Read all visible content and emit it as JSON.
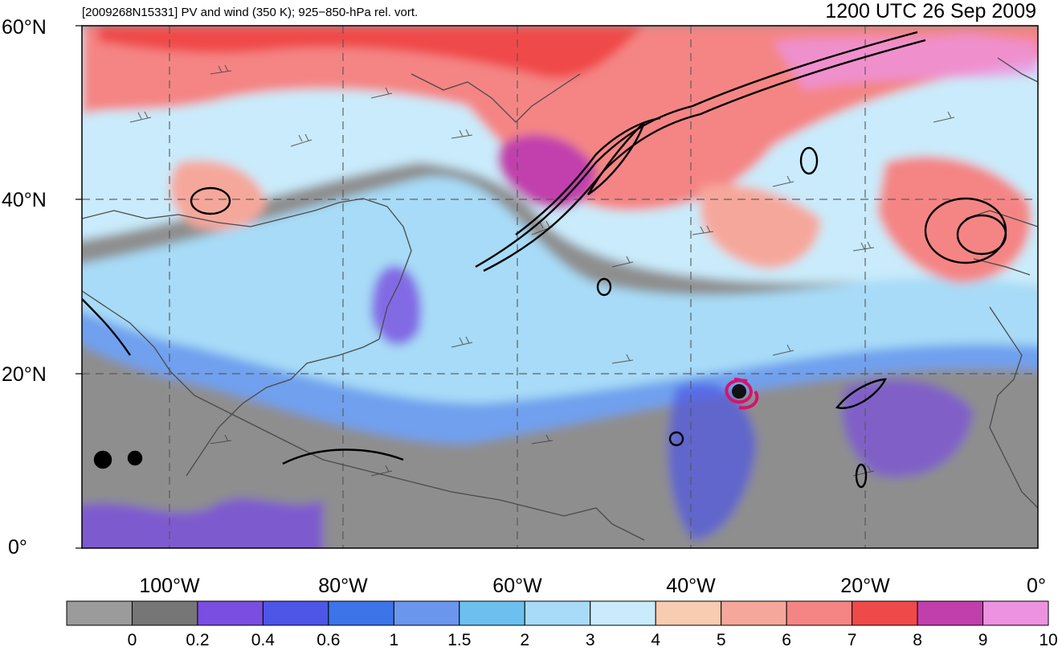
{
  "header": {
    "left_caption": "[2009268N15331] PV and wind (350 K); 925−850-hPa rel. vort.",
    "right_caption": "1200 UTC 26 Sep 2009"
  },
  "axes": {
    "lat_labels": [
      "60°N",
      "40°N",
      "20°N",
      "0°"
    ],
    "lon_labels": [
      "100°W",
      "80°W",
      "60°W",
      "40°W",
      "20°W",
      "0°"
    ]
  },
  "colorbar": {
    "labels": [
      "0",
      "0.2",
      "0.4",
      "0.6",
      "1",
      "1.5",
      "2",
      "3",
      "4",
      "5",
      "6",
      "7",
      "8",
      "9",
      "10"
    ],
    "colors": [
      "#9b9b9b",
      "#767676",
      "#7a4ee0",
      "#4d56e6",
      "#3d74ea",
      "#6b96ee",
      "#6cc0ef",
      "#a7dbf7",
      "#c9ebfb",
      "#f7ccb1",
      "#f6a79b",
      "#f48584",
      "#f04949",
      "#c13fad",
      "#ed92e0"
    ]
  },
  "storm": {
    "name_code": "2009268N15331",
    "color": "#d6136b"
  },
  "colors": {
    "frame": "#000000",
    "grid_dash": "#555555",
    "coast": "#4a4a4a",
    "contour": "#000000"
  }
}
